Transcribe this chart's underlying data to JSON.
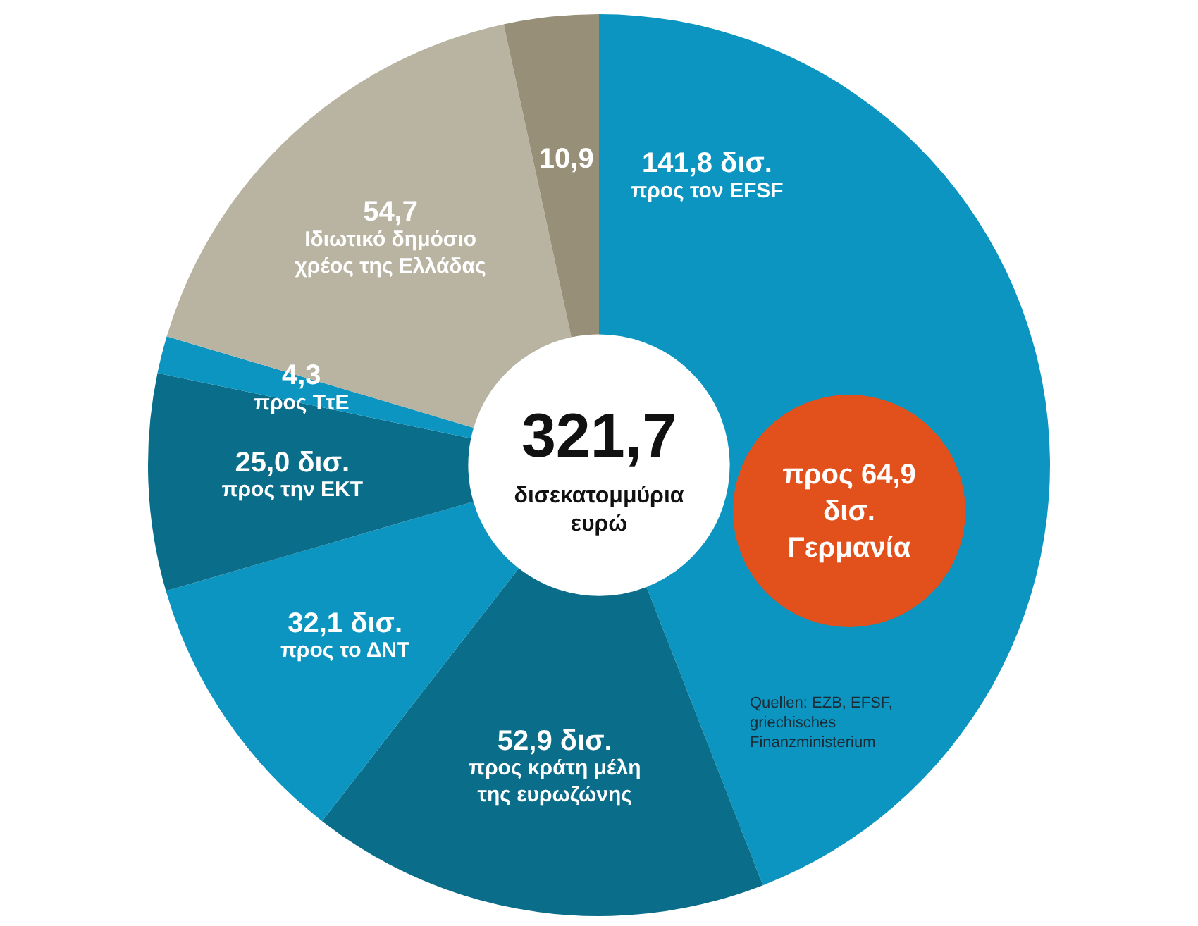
{
  "chart_data": {
    "type": "donut",
    "title": "321,7",
    "subtitle": "δισεκατομμύρια ευρώ",
    "categories": [
      "προς τον EFSF",
      "προς κράτη μέλη της ευρωζώνης",
      "προς το ΔΝΤ",
      "προς την ΕΚΤ",
      "προς ΤτΕ",
      "Ιδιωτικό δημόσιο χρέος της Ελλάδας",
      null
    ],
    "values": [
      141.8,
      52.9,
      32.1,
      25.0,
      4.3,
      54.7,
      10.9
    ],
    "value_labels": [
      "141,8 δισ.",
      "52,9 δισ.",
      "32,1 δισ.",
      "25,0 δισ.",
      "4,3",
      "54,7",
      "10,9"
    ],
    "colors": [
      "#0b95c0",
      "#0a6d8a",
      "#0b95c0",
      "#0a6d8a",
      "#0b95c0",
      "#b9b3a1",
      "#978f78"
    ],
    "annotations": [
      "προς 64,9 δισ. Γερμανία",
      "Quellen: EZB, EFSF, griechisches Finanzministerium"
    ],
    "legend": false
  }
}
